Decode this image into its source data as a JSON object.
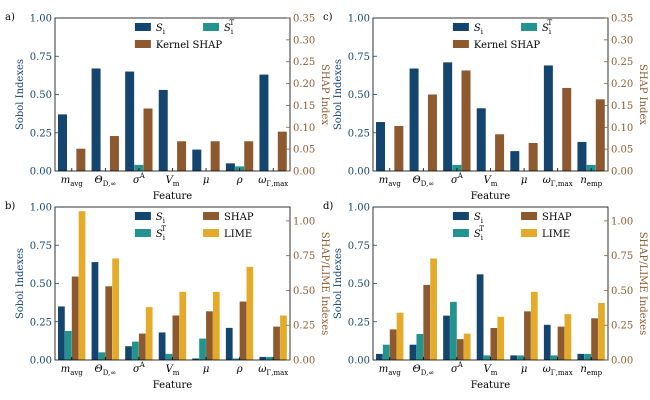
{
  "colors": {
    "sobol_first": "#14456e",
    "sobol_total": "#23938f",
    "shap": "#8c5a2e",
    "lime": "#e4ab2b",
    "left_axis": "#14456e",
    "right_axis": "#8c5a2e"
  },
  "chart_data": [
    {
      "panel": "a)",
      "type": "bar",
      "xlabel": "Feature",
      "ylabel_left": "Sobol Indexes",
      "ylabel_right": "SHAP Index",
      "ylim_left": [
        0,
        1.0
      ],
      "ylim_right": [
        0,
        0.35
      ],
      "yticks_left": [
        "0.00",
        "0.25",
        "0.50",
        "0.75",
        "1.00"
      ],
      "yticks_right": [
        "0.00",
        "0.05",
        "0.10",
        "0.15",
        "0.20",
        "0.25",
        "0.30",
        "0.35"
      ],
      "categories": [
        "m_avg",
        "Θ_D,∞",
        "σ^A",
        "V_m",
        "μ",
        "ρ",
        "ω_Γ,max"
      ],
      "series": [
        {
          "name": "S_i",
          "axis": "left",
          "color_key": "sobol_first",
          "values": [
            0.37,
            0.67,
            0.65,
            0.53,
            0.14,
            0.05,
            0.63
          ]
        },
        {
          "name": "S_i^T",
          "axis": "left",
          "color_key": "sobol_total",
          "values": [
            0.0,
            0.0,
            0.04,
            0.0,
            0.0,
            0.03,
            0.0
          ]
        },
        {
          "name": "Kernel SHAP",
          "axis": "right",
          "color_key": "shap",
          "values": [
            0.051,
            0.08,
            0.143,
            0.068,
            0.068,
            0.068,
            0.09
          ]
        }
      ],
      "legend": [
        [
          "S_i",
          "sobol_first"
        ],
        [
          "S_i^T",
          "sobol_total"
        ],
        [
          "Kernel SHAP",
          "shap"
        ]
      ]
    },
    {
      "panel": "c)",
      "type": "bar",
      "xlabel": "Feature",
      "ylabel_left": "Sobol Indexes",
      "ylabel_right": "SHAP Index",
      "ylim_left": [
        0,
        1.0
      ],
      "ylim_right": [
        0,
        0.35
      ],
      "yticks_left": [
        "0.00",
        "0.25",
        "0.50",
        "0.75",
        "1.00"
      ],
      "yticks_right": [
        "0.00",
        "0.05",
        "0.10",
        "0.15",
        "0.20",
        "0.25",
        "0.30",
        "0.35"
      ],
      "categories": [
        "m_avg",
        "Θ_D,∞",
        "σ^A",
        "V_m",
        "μ",
        "ω_Γ,max",
        "n_emp"
      ],
      "series": [
        {
          "name": "S_i",
          "axis": "left",
          "color_key": "sobol_first",
          "values": [
            0.32,
            0.67,
            0.71,
            0.41,
            0.13,
            0.69,
            0.19
          ]
        },
        {
          "name": "S_i^T",
          "axis": "left",
          "color_key": "sobol_total",
          "values": [
            0.0,
            0.0,
            0.04,
            0.0,
            0.0,
            0.0,
            0.04
          ]
        },
        {
          "name": "Kernel SHAP",
          "axis": "right",
          "color_key": "shap",
          "values": [
            0.103,
            0.175,
            0.23,
            0.084,
            0.064,
            0.19,
            0.164
          ]
        }
      ],
      "legend": [
        [
          "S_i",
          "sobol_first"
        ],
        [
          "S_i^T",
          "sobol_total"
        ],
        [
          "Kernel SHAP",
          "shap"
        ]
      ]
    },
    {
      "panel": "b)",
      "type": "bar",
      "xlabel": "Feature",
      "ylabel_left": "Sobol Indexes",
      "ylabel_right": "SHAP/LIME Indexes",
      "ylim_left": [
        0,
        1.0
      ],
      "ylim_right": [
        0,
        1.1
      ],
      "yticks_left": [
        "0.00",
        "0.25",
        "0.50",
        "0.75",
        "1.00"
      ],
      "yticks_right": [
        "0.00",
        "0.25",
        "0.50",
        "0.75",
        "1.00"
      ],
      "categories": [
        "m_avg",
        "Θ_D,∞",
        "σ^A",
        "V_m",
        "μ",
        "ρ",
        "ω_Γ,max"
      ],
      "series": [
        {
          "name": "S_i",
          "axis": "left",
          "color_key": "sobol_first",
          "values": [
            0.35,
            0.64,
            0.09,
            0.18,
            0.01,
            0.21,
            0.02
          ]
        },
        {
          "name": "S_i^T",
          "axis": "left",
          "color_key": "sobol_total",
          "values": [
            0.19,
            0.05,
            0.12,
            0.04,
            0.14,
            0.01,
            0.02
          ]
        },
        {
          "name": "SHAP",
          "axis": "right",
          "color_key": "shap",
          "values": [
            0.6,
            0.53,
            0.19,
            0.32,
            0.35,
            0.42,
            0.24
          ]
        },
        {
          "name": "LIME",
          "axis": "right",
          "color_key": "lime",
          "values": [
            1.07,
            0.73,
            0.38,
            0.49,
            0.49,
            0.67,
            0.32
          ]
        }
      ],
      "legend": [
        [
          "S_i",
          "sobol_first"
        ],
        [
          "SHAP",
          "shap"
        ],
        [
          "S_i^T",
          "sobol_total"
        ],
        [
          "LIME",
          "lime"
        ]
      ]
    },
    {
      "panel": "d)",
      "type": "bar",
      "xlabel": "Feature",
      "ylabel_left": "Sobol Indexes",
      "ylabel_right": "SHAP/LIME Indexes",
      "ylim_left": [
        0,
        1.0
      ],
      "ylim_right": [
        0,
        1.1
      ],
      "yticks_left": [
        "0.00",
        "0.25",
        "0.50",
        "0.75",
        "1.00"
      ],
      "yticks_right": [
        "0.00",
        "0.25",
        "0.50",
        "0.75",
        "1.00"
      ],
      "categories": [
        "m_avg",
        "Θ_D,∞",
        "σ^A",
        "V_m",
        "μ",
        "ω_Γ,max",
        "n_emp"
      ],
      "series": [
        {
          "name": "S_i",
          "axis": "left",
          "color_key": "sobol_first",
          "values": [
            0.04,
            0.1,
            0.29,
            0.56,
            0.03,
            0.23,
            0.04
          ]
        },
        {
          "name": "S_i^T",
          "axis": "left",
          "color_key": "sobol_total",
          "values": [
            0.1,
            0.17,
            0.38,
            0.03,
            0.03,
            0.03,
            0.04
          ]
        },
        {
          "name": "SHAP",
          "axis": "right",
          "color_key": "shap",
          "values": [
            0.22,
            0.54,
            0.15,
            0.23,
            0.35,
            0.24,
            0.3
          ]
        },
        {
          "name": "LIME",
          "axis": "right",
          "color_key": "lime",
          "values": [
            0.34,
            0.73,
            0.19,
            0.31,
            0.49,
            0.33,
            0.41
          ]
        }
      ],
      "legend": [
        [
          "S_i",
          "sobol_first"
        ],
        [
          "SHAP",
          "shap"
        ],
        [
          "S_i^T",
          "sobol_total"
        ],
        [
          "LIME",
          "lime"
        ]
      ]
    }
  ]
}
